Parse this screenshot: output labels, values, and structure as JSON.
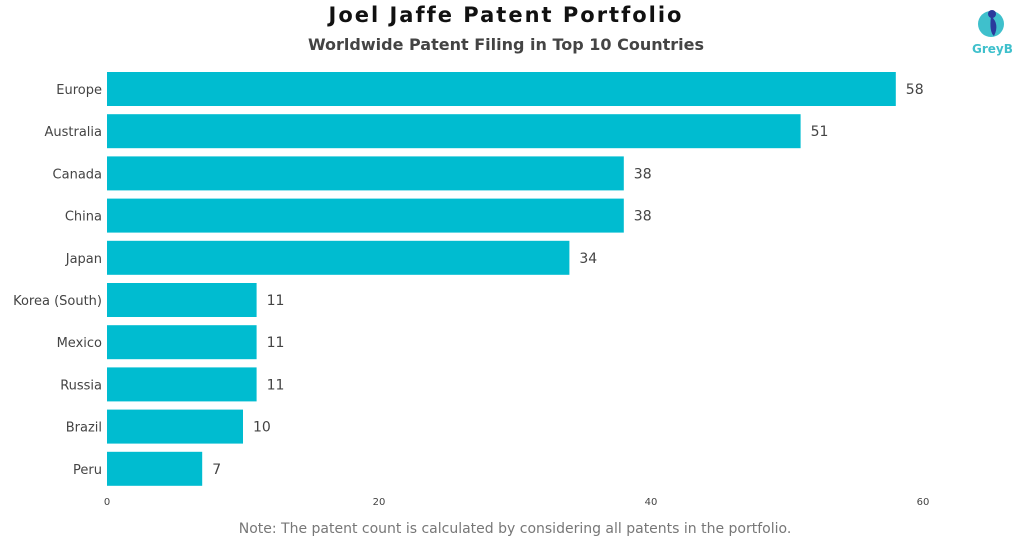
{
  "chart_data": {
    "type": "bar",
    "orientation": "horizontal",
    "title": "Joel Jaffe Patent Portfolio",
    "subtitle": "Worldwide Patent Filing in Top 10 Countries",
    "categories": [
      "Europe",
      "Australia",
      "Canada",
      "China",
      "Japan",
      "Korea (South)",
      "Mexico",
      "Russia",
      "Brazil",
      "Peru"
    ],
    "values": [
      58,
      51,
      38,
      38,
      34,
      11,
      11,
      11,
      10,
      7
    ],
    "xlim": [
      0,
      60
    ],
    "xticks": [
      0,
      20,
      40,
      60
    ],
    "xlabel": "",
    "ylabel": "",
    "grid": false,
    "bar_color": "#00bcd0",
    "note": "Note: The patent count is calculated by considering all patents in the portfolio."
  },
  "logo": {
    "text": "GreyB",
    "color": "#3fc0cc"
  }
}
